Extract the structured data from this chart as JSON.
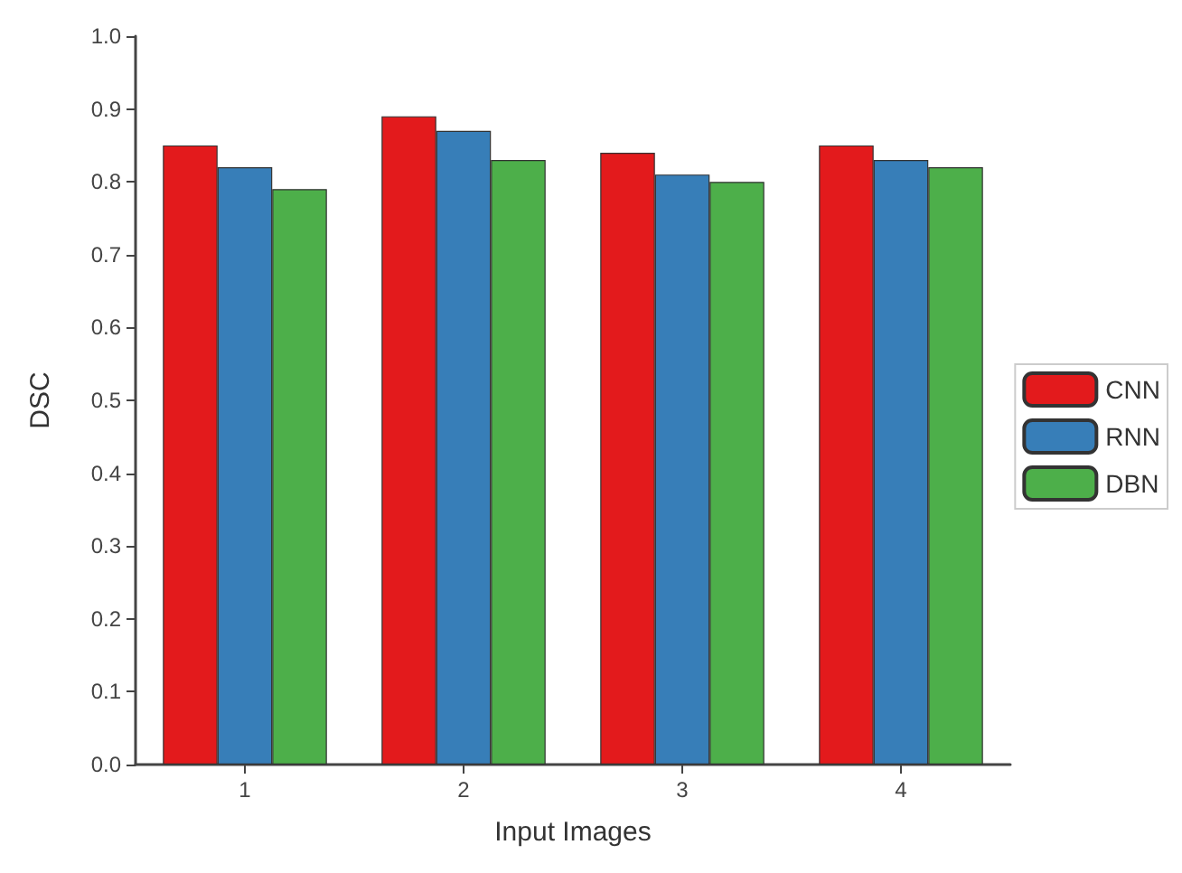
{
  "chart_data": {
    "type": "bar",
    "xlabel": "Input Images",
    "ylabel": "DSC",
    "categories": [
      "1",
      "2",
      "3",
      "4"
    ],
    "series": [
      {
        "name": "CNN",
        "color": "#e31a1c",
        "values": [
          0.85,
          0.89,
          0.84,
          0.85
        ]
      },
      {
        "name": "RNN",
        "color": "#377eb8",
        "values": [
          0.82,
          0.87,
          0.81,
          0.83
        ]
      },
      {
        "name": "DBN",
        "color": "#4daf4a",
        "values": [
          0.79,
          0.83,
          0.8,
          0.82
        ]
      }
    ],
    "ylim": [
      0,
      1.0
    ],
    "yticks": [
      {
        "value": 0,
        "label": "0.0"
      },
      0.1,
      0.2,
      0.3,
      0.4,
      0.5,
      0.6,
      0.7,
      0.8,
      0.9,
      {
        "value": 1,
        "label": "1.0"
      }
    ],
    "grid": false,
    "legend": "right"
  }
}
